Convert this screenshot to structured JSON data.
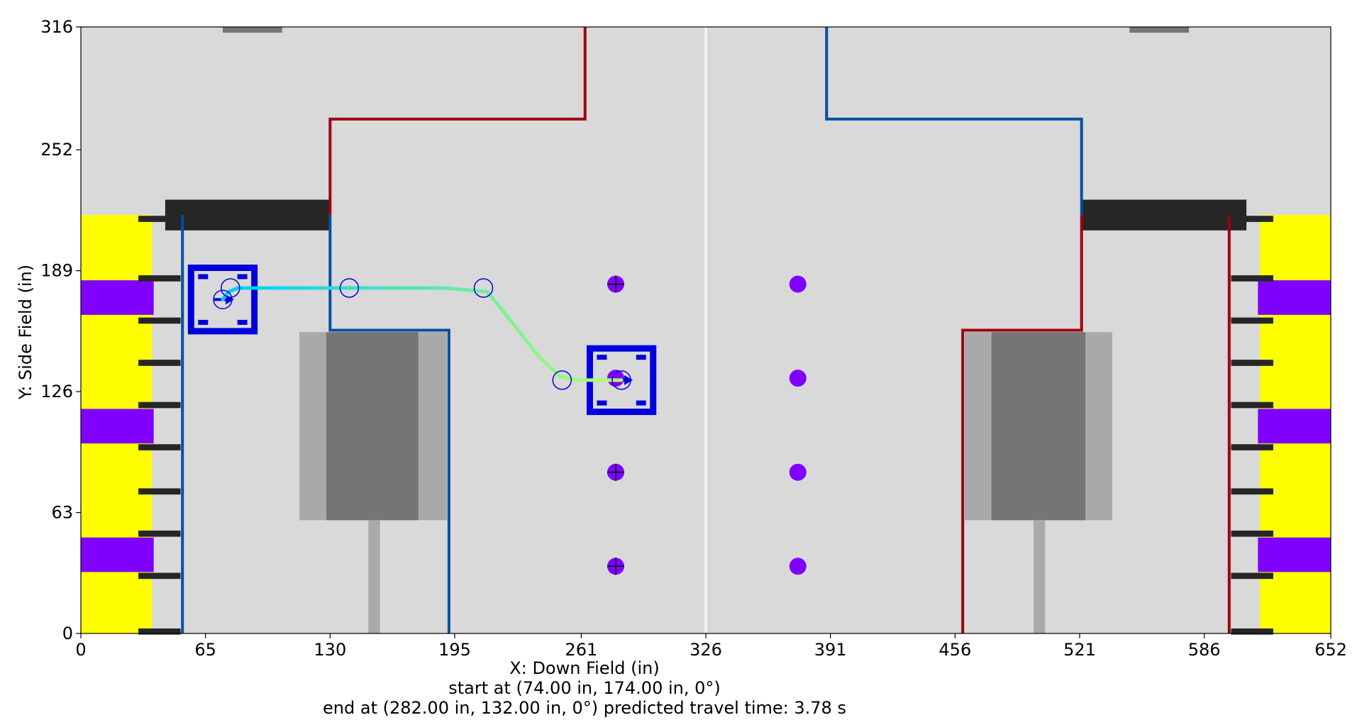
{
  "chart_data": {
    "type": "scatter",
    "xlabel": "X: Down Field (in)",
    "ylabel": "Y: Side Field (in)",
    "xlim": [
      0,
      652
    ],
    "ylim": [
      0,
      316
    ],
    "x_ticks": [
      "0",
      "65",
      "130",
      "195",
      "261",
      "326",
      "391",
      "456",
      "521",
      "586",
      "652"
    ],
    "x_tick_values": [
      0,
      65,
      130,
      195,
      261,
      326,
      391,
      456,
      521,
      586,
      652
    ],
    "y_ticks": [
      "0",
      "63",
      "126",
      "189",
      "252",
      "316"
    ],
    "y_tick_values": [
      0,
      63,
      126,
      189,
      252,
      316
    ],
    "caption_start": "start at (74.00 in, 174.00 in, 0°)",
    "caption_end": "end at (282.00 in, 132.00 in, 0°) predicted travel time: 3.78 s",
    "start_pose": {
      "x": 74,
      "y": 174,
      "heading_deg": 0
    },
    "end_pose": {
      "x": 282,
      "y": 132,
      "heading_deg": 0
    },
    "travel_time_s": 3.78,
    "waypoints": [
      {
        "x": 78,
        "y": 180
      },
      {
        "x": 140,
        "y": 180
      },
      {
        "x": 210,
        "y": 180
      },
      {
        "x": 251,
        "y": 132
      },
      {
        "x": 282,
        "y": 132
      }
    ],
    "path": [
      {
        "x": 74,
        "y": 174
      },
      {
        "x": 77,
        "y": 178
      },
      {
        "x": 82,
        "y": 180
      },
      {
        "x": 110,
        "y": 180
      },
      {
        "x": 150,
        "y": 180
      },
      {
        "x": 190,
        "y": 180
      },
      {
        "x": 212,
        "y": 178
      },
      {
        "x": 225,
        "y": 162
      },
      {
        "x": 240,
        "y": 143
      },
      {
        "x": 250,
        "y": 134
      },
      {
        "x": 258,
        "y": 132
      },
      {
        "x": 282,
        "y": 132
      }
    ],
    "game_pieces": [
      {
        "x": 279,
        "y": 182,
        "marked": true
      },
      {
        "x": 279,
        "y": 133,
        "marked": false
      },
      {
        "x": 279,
        "y": 84,
        "marked": true
      },
      {
        "x": 279,
        "y": 35,
        "marked": true
      },
      {
        "x": 374,
        "y": 182,
        "marked": false
      },
      {
        "x": 374,
        "y": 133,
        "marked": false
      },
      {
        "x": 374,
        "y": 84,
        "marked": false
      },
      {
        "x": 374,
        "y": 35,
        "marked": false
      }
    ],
    "robot_size_in": 36,
    "colors": {
      "field": "#d9d9d9",
      "red_alliance": "#a00010",
      "blue_alliance": "#0050a0",
      "robot": "#0000dd",
      "game_piece": "#8000ff",
      "station_yellow": "#ffff00",
      "station_purple": "#8000ff",
      "charge_outer": "#a9a9a9",
      "charge_inner": "#757575",
      "grid_dark": "#262626",
      "center_line": "#f2f2f2",
      "path_start": "#00ccff",
      "path_end": "#b3ff66"
    }
  }
}
